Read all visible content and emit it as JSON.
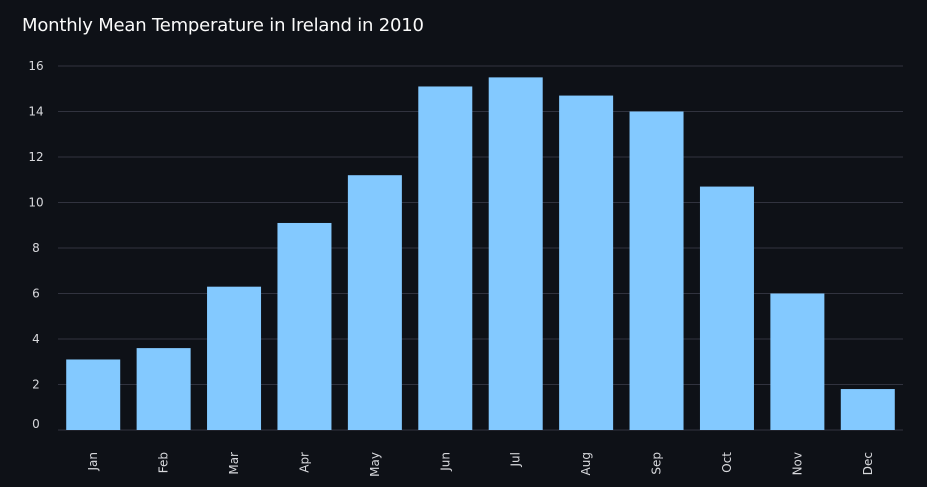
{
  "chart_data": {
    "type": "bar",
    "title": "Monthly Mean Temperature in Ireland in 2010",
    "xlabel": "",
    "ylabel": "",
    "categories": [
      "Jan",
      "Feb",
      "Mar",
      "Apr",
      "May",
      "Jun",
      "Jul",
      "Aug",
      "Sep",
      "Oct",
      "Nov",
      "Dec"
    ],
    "values": [
      3.1,
      3.6,
      6.3,
      9.1,
      11.2,
      15.1,
      15.5,
      14.7,
      14.0,
      10.7,
      6.0,
      1.8
    ],
    "ylim": [
      0,
      16
    ],
    "yticks": [
      "0",
      "2",
      "4",
      "6",
      "8",
      "10",
      "12",
      "14",
      "16"
    ],
    "grid": true,
    "legend": "none",
    "colors": {
      "bar": "#83c9ff",
      "background": "#0e1117",
      "gridline": "#31333f",
      "text": "#fafafa",
      "tick_text": "#d7d8dc"
    }
  }
}
